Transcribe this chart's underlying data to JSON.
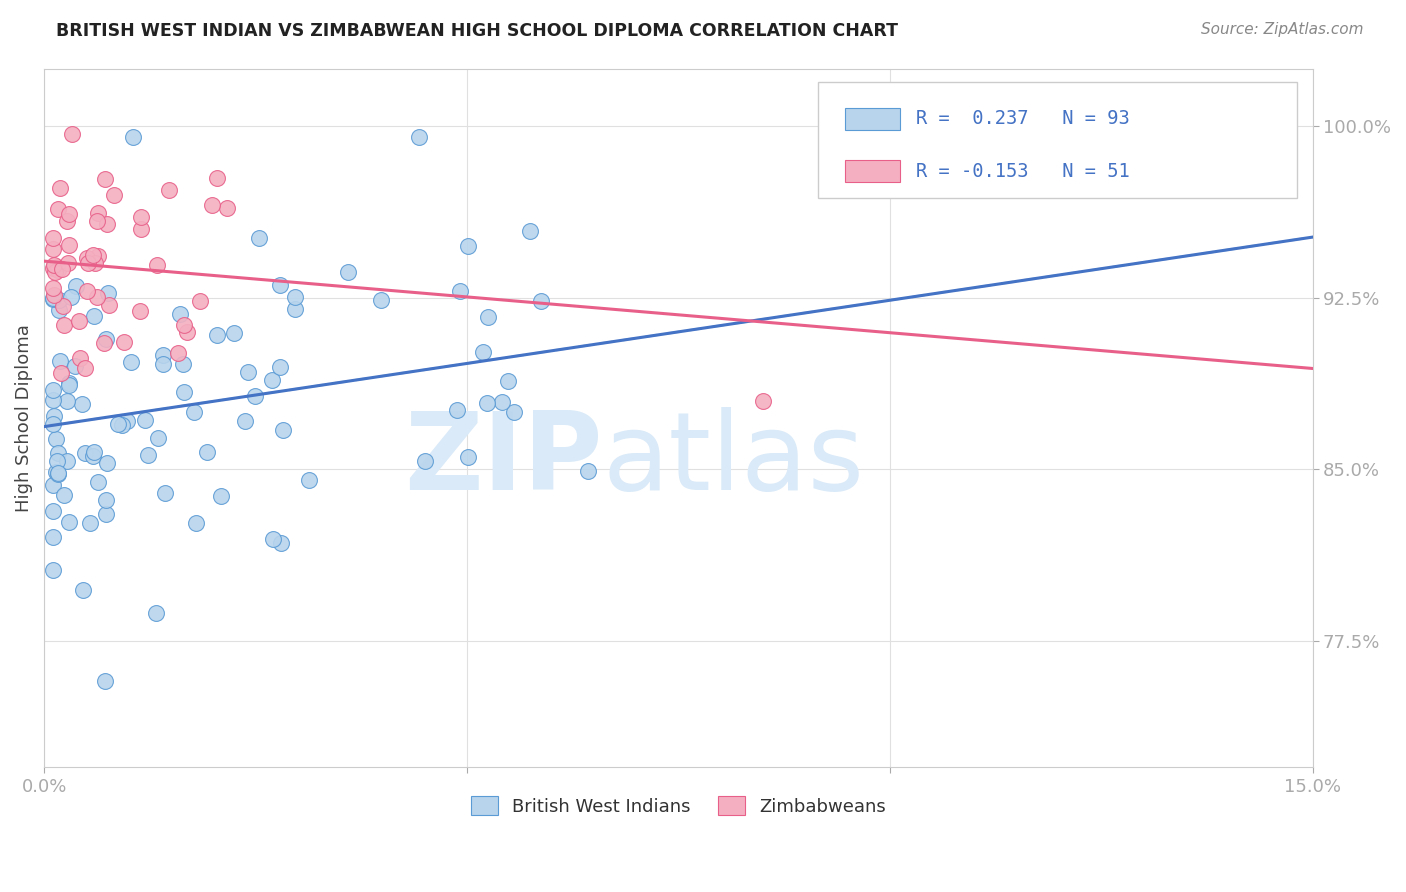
{
  "title": "BRITISH WEST INDIAN VS ZIMBABWEAN HIGH SCHOOL DIPLOMA CORRELATION CHART",
  "source": "Source: ZipAtlas.com",
  "ylabel": "High School Diploma",
  "x_min": 0.0,
  "x_max": 0.15,
  "y_min": 0.72,
  "y_max": 1.025,
  "x_ticks": [
    0.0,
    0.05,
    0.1,
    0.15
  ],
  "x_tick_labels": [
    "0.0%",
    "",
    "",
    "15.0%"
  ],
  "y_ticks": [
    0.775,
    0.85,
    0.925,
    1.0
  ],
  "y_tick_labels": [
    "77.5%",
    "85.0%",
    "92.5%",
    "100.0%"
  ],
  "legend_R1": " 0.237",
  "legend_N1": "93",
  "legend_R2": "-0.153",
  "legend_N2": "51",
  "color_blue_fill": "#b8d4ec",
  "color_blue_edge": "#5b9bd5",
  "color_pink_fill": "#f4b0c0",
  "color_pink_edge": "#e8608a",
  "color_blue_line": "#4472c4",
  "color_pink_line": "#e8608a",
  "color_axis_labels": "#4472c4",
  "watermark_color": "#daeaf8",
  "legend_label_blue": "British West Indians",
  "legend_label_pink": "Zimbabweans"
}
